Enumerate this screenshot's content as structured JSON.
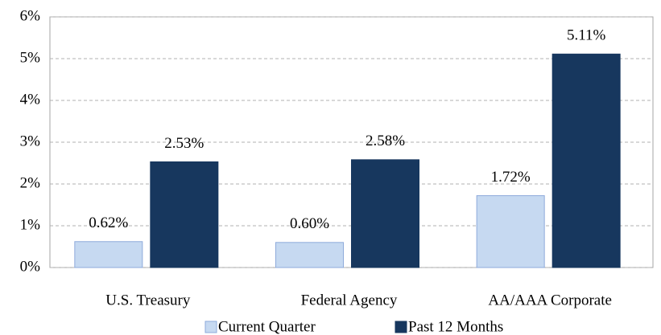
{
  "chart_data": {
    "type": "bar",
    "categories": [
      "U.S. Treasury",
      "Federal Agency",
      "AA/AAA Corporate"
    ],
    "series": [
      {
        "name": "Current Quarter",
        "color": "#c6d9f1",
        "values": [
          0.62,
          0.6,
          1.72
        ],
        "value_labels": [
          "0.62%",
          "0.60%",
          "1.72%"
        ]
      },
      {
        "name": "Past 12 Months",
        "color": "#17375e",
        "values": [
          2.53,
          2.58,
          5.11
        ],
        "value_labels": [
          "2.53%",
          "2.58%",
          "5.11%"
        ]
      }
    ],
    "ylim": [
      0,
      6
    ],
    "yticks": [
      {
        "value": 0,
        "label": "0%"
      },
      {
        "value": 1,
        "label": "1%"
      },
      {
        "value": 2,
        "label": "2%"
      },
      {
        "value": 3,
        "label": "3%"
      },
      {
        "value": 4,
        "label": "4%"
      },
      {
        "value": 5,
        "label": "5%"
      },
      {
        "value": 6,
        "label": "6%"
      }
    ],
    "grid": true,
    "legend": "bottom"
  }
}
